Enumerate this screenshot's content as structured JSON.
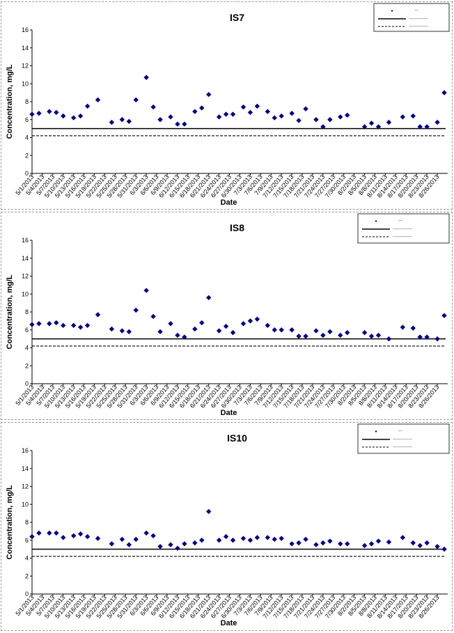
{
  "chart_data": [
    {
      "type": "scatter",
      "title": "IS7",
      "xlabel": "Date",
      "ylabel": "Concentration, mg/L",
      "ylim": [
        0,
        16
      ],
      "yticks": [
        0,
        2,
        4,
        6,
        8,
        10,
        12,
        14,
        16
      ],
      "xlim": [
        "5/1/2013",
        "8/29/2013"
      ],
      "xtick_labels": [
        "5/1/2013",
        "5/4/2013",
        "5/7/2013",
        "5/10/2013",
        "5/13/2013",
        "5/16/2013",
        "5/19/2013",
        "5/22/2013",
        "5/25/2013",
        "5/28/2013",
        "5/31/2013",
        "6/3/2013",
        "6/6/2013",
        "6/9/2013",
        "6/12/2013",
        "6/15/2013",
        "6/18/2013",
        "6/21/2013",
        "6/24/2013",
        "6/27/2013",
        "6/30/2013",
        "7/3/2013",
        "7/6/2013",
        "7/9/2013",
        "7/12/2013",
        "7/15/2013",
        "7/18/2013",
        "7/21/2013",
        "7/24/2013",
        "7/27/2013",
        "7/30/2013",
        "8/2/2013",
        "8/5/2013",
        "8/8/2013",
        "8/11/2013",
        "8/14/2013",
        "8/17/2013",
        "8/20/2013",
        "8/23/2013",
        "8/26/2013"
      ],
      "grid": false,
      "legend_position": "top-right",
      "marker_color": "#00008B",
      "reference_lines": [
        {
          "style": "solid",
          "value": 5.0
        },
        {
          "style": "dashed",
          "value": 4.2
        }
      ],
      "points": [
        {
          "x": "5/1/2013",
          "y": 6.6
        },
        {
          "x": "5/3/2013",
          "y": 6.7
        },
        {
          "x": "5/6/2013",
          "y": 6.9
        },
        {
          "x": "5/8/2013",
          "y": 6.8
        },
        {
          "x": "5/10/2013",
          "y": 6.4
        },
        {
          "x": "5/13/2013",
          "y": 6.2
        },
        {
          "x": "5/15/2013",
          "y": 6.4
        },
        {
          "x": "5/17/2013",
          "y": 7.5
        },
        {
          "x": "5/20/2013",
          "y": 8.2
        },
        {
          "x": "5/24/2013",
          "y": 5.7
        },
        {
          "x": "5/27/2013",
          "y": 6.0
        },
        {
          "x": "5/29/2013",
          "y": 5.8
        },
        {
          "x": "5/31/2013",
          "y": 8.2
        },
        {
          "x": "6/3/2013",
          "y": 10.7
        },
        {
          "x": "6/5/2013",
          "y": 7.4
        },
        {
          "x": "6/7/2013",
          "y": 6.0
        },
        {
          "x": "6/10/2013",
          "y": 6.3
        },
        {
          "x": "6/12/2013",
          "y": 5.5
        },
        {
          "x": "6/14/2013",
          "y": 5.5
        },
        {
          "x": "6/17/2013",
          "y": 6.9
        },
        {
          "x": "6/19/2013",
          "y": 7.3
        },
        {
          "x": "6/21/2013",
          "y": 8.8
        },
        {
          "x": "6/24/2013",
          "y": 6.3
        },
        {
          "x": "6/26/2013",
          "y": 6.6
        },
        {
          "x": "6/28/2013",
          "y": 6.6
        },
        {
          "x": "7/1/2013",
          "y": 7.4
        },
        {
          "x": "7/3/2013",
          "y": 6.8
        },
        {
          "x": "7/5/2013",
          "y": 7.5
        },
        {
          "x": "7/8/2013",
          "y": 6.9
        },
        {
          "x": "7/10/2013",
          "y": 6.2
        },
        {
          "x": "7/12/2013",
          "y": 6.4
        },
        {
          "x": "7/15/2013",
          "y": 6.7
        },
        {
          "x": "7/17/2013",
          "y": 5.9
        },
        {
          "x": "7/19/2013",
          "y": 7.2
        },
        {
          "x": "7/22/2013",
          "y": 6.0
        },
        {
          "x": "7/24/2013",
          "y": 5.2
        },
        {
          "x": "7/26/2013",
          "y": 6.0
        },
        {
          "x": "7/29/2013",
          "y": 6.3
        },
        {
          "x": "7/31/2013",
          "y": 6.5
        },
        {
          "x": "8/5/2013",
          "y": 5.2
        },
        {
          "x": "8/7/2013",
          "y": 5.6
        },
        {
          "x": "8/9/2013",
          "y": 5.2
        },
        {
          "x": "8/12/2013",
          "y": 5.7
        },
        {
          "x": "8/16/2013",
          "y": 6.3
        },
        {
          "x": "8/19/2013",
          "y": 6.4
        },
        {
          "x": "8/21/2013",
          "y": 5.2
        },
        {
          "x": "8/23/2013",
          "y": 5.2
        },
        {
          "x": "8/26/2013",
          "y": 5.7
        },
        {
          "x": "8/28/2013",
          "y": 9.0
        }
      ]
    },
    {
      "type": "scatter",
      "title": "IS8",
      "xlabel": "Date",
      "ylabel": "Concentration, mg/L",
      "ylim": [
        0,
        16
      ],
      "yticks": [
        0,
        2,
        4,
        6,
        8,
        10,
        12,
        14,
        16
      ],
      "xlim": [
        "5/1/2013",
        "8/29/2013"
      ],
      "xtick_labels": [
        "5/1/2013",
        "5/4/2013",
        "5/7/2013",
        "5/10/2013",
        "5/13/2013",
        "5/16/2013",
        "5/19/2013",
        "5/22/2013",
        "5/25/2013",
        "5/28/2013",
        "5/31/2013",
        "6/3/2013",
        "6/6/2013",
        "6/9/2013",
        "6/12/2013",
        "6/15/2013",
        "6/18/2013",
        "6/21/2013",
        "6/24/2013",
        "6/27/2013",
        "6/30/2013",
        "7/3/2013",
        "7/6/2013",
        "7/9/2013",
        "7/12/2013",
        "7/15/2013",
        "7/18/2013",
        "7/21/2013",
        "7/24/2013",
        "7/27/2013",
        "7/30/2013",
        "8/2/2013",
        "8/5/2013",
        "8/8/2013",
        "8/11/2013",
        "8/14/2013",
        "8/17/2013",
        "8/20/2013",
        "8/23/2013",
        "8/26/2013"
      ],
      "grid": false,
      "legend_position": "top-right",
      "marker_color": "#00008B",
      "reference_lines": [
        {
          "style": "solid",
          "value": 5.0
        },
        {
          "style": "dashed",
          "value": 4.2
        }
      ],
      "points": [
        {
          "x": "5/1/2013",
          "y": 6.6
        },
        {
          "x": "5/3/2013",
          "y": 6.7
        },
        {
          "x": "5/6/2013",
          "y": 6.7
        },
        {
          "x": "5/8/2013",
          "y": 6.8
        },
        {
          "x": "5/10/2013",
          "y": 6.5
        },
        {
          "x": "5/13/2013",
          "y": 6.5
        },
        {
          "x": "5/15/2013",
          "y": 6.3
        },
        {
          "x": "5/17/2013",
          "y": 6.5
        },
        {
          "x": "5/20/2013",
          "y": 7.7
        },
        {
          "x": "5/24/2013",
          "y": 6.1
        },
        {
          "x": "5/27/2013",
          "y": 5.9
        },
        {
          "x": "5/29/2013",
          "y": 5.8
        },
        {
          "x": "5/31/2013",
          "y": 8.2
        },
        {
          "x": "6/3/2013",
          "y": 10.4
        },
        {
          "x": "6/5/2013",
          "y": 7.5
        },
        {
          "x": "6/7/2013",
          "y": 5.8
        },
        {
          "x": "6/10/2013",
          "y": 6.7
        },
        {
          "x": "6/12/2013",
          "y": 5.4
        },
        {
          "x": "6/14/2013",
          "y": 5.2
        },
        {
          "x": "6/17/2013",
          "y": 6.1
        },
        {
          "x": "6/19/2013",
          "y": 6.8
        },
        {
          "x": "6/21/2013",
          "y": 9.6
        },
        {
          "x": "6/24/2013",
          "y": 5.9
        },
        {
          "x": "6/26/2013",
          "y": 6.4
        },
        {
          "x": "6/28/2013",
          "y": 5.7
        },
        {
          "x": "7/1/2013",
          "y": 6.7
        },
        {
          "x": "7/3/2013",
          "y": 7.0
        },
        {
          "x": "7/5/2013",
          "y": 7.2
        },
        {
          "x": "7/8/2013",
          "y": 6.5
        },
        {
          "x": "7/10/2013",
          "y": 6.0
        },
        {
          "x": "7/12/2013",
          "y": 6.0
        },
        {
          "x": "7/15/2013",
          "y": 6.0
        },
        {
          "x": "7/17/2013",
          "y": 5.3
        },
        {
          "x": "7/19/2013",
          "y": 5.3
        },
        {
          "x": "7/22/2013",
          "y": 5.9
        },
        {
          "x": "7/24/2013",
          "y": 5.4
        },
        {
          "x": "7/26/2013",
          "y": 5.8
        },
        {
          "x": "7/29/2013",
          "y": 5.4
        },
        {
          "x": "7/31/2013",
          "y": 5.7
        },
        {
          "x": "8/5/2013",
          "y": 5.7
        },
        {
          "x": "8/7/2013",
          "y": 5.3
        },
        {
          "x": "8/9/2013",
          "y": 5.4
        },
        {
          "x": "8/12/2013",
          "y": 5.0
        },
        {
          "x": "8/16/2013",
          "y": 6.3
        },
        {
          "x": "8/19/2013",
          "y": 6.2
        },
        {
          "x": "8/21/2013",
          "y": 5.2
        },
        {
          "x": "8/23/2013",
          "y": 5.2
        },
        {
          "x": "8/26/2013",
          "y": 5.0
        },
        {
          "x": "8/28/2013",
          "y": 7.6
        }
      ]
    },
    {
      "type": "scatter",
      "title": "IS10",
      "xlabel": "Date",
      "ylabel": "Concentration, mg/L",
      "ylim": [
        0,
        16
      ],
      "yticks": [
        0,
        2,
        4,
        6,
        8,
        10,
        12,
        14,
        16
      ],
      "xlim": [
        "5/1/2013",
        "8/29/2013"
      ],
      "xtick_labels": [
        "5/1/2013",
        "5/4/2013",
        "5/7/2013",
        "5/10/2013",
        "5/13/2013",
        "5/16/2013",
        "5/19/2013",
        "5/22/2013",
        "5/25/2013",
        "5/28/2013",
        "5/31/2013",
        "6/3/2013",
        "6/6/2013",
        "6/9/2013",
        "6/12/2013",
        "6/15/2013",
        "6/18/2013",
        "6/21/2013",
        "6/24/2013",
        "6/27/2013",
        "6/30/2013",
        "7/3/2013",
        "7/6/2013",
        "7/9/2013",
        "7/12/2013",
        "7/15/2013",
        "7/18/2013",
        "7/21/2013",
        "7/24/2013",
        "7/27/2013",
        "7/30/2013",
        "8/2/2013",
        "8/5/2013",
        "8/8/2013",
        "8/11/2013",
        "8/14/2013",
        "8/17/2013",
        "8/20/2013",
        "8/23/2013",
        "8/26/2013"
      ],
      "grid": false,
      "legend_position": "top-right",
      "marker_color": "#00008B",
      "reference_lines": [
        {
          "style": "solid",
          "value": 5.0
        },
        {
          "style": "dashed",
          "value": 4.2
        }
      ],
      "points": [
        {
          "x": "5/1/2013",
          "y": 6.4
        },
        {
          "x": "5/3/2013",
          "y": 6.8
        },
        {
          "x": "5/6/2013",
          "y": 6.8
        },
        {
          "x": "5/8/2013",
          "y": 6.8
        },
        {
          "x": "5/10/2013",
          "y": 6.3
        },
        {
          "x": "5/13/2013",
          "y": 6.5
        },
        {
          "x": "5/15/2013",
          "y": 6.7
        },
        {
          "x": "5/17/2013",
          "y": 6.4
        },
        {
          "x": "5/20/2013",
          "y": 6.2
        },
        {
          "x": "5/24/2013",
          "y": 5.6
        },
        {
          "x": "5/27/2013",
          "y": 6.1
        },
        {
          "x": "5/29/2013",
          "y": 5.5
        },
        {
          "x": "5/31/2013",
          "y": 6.1
        },
        {
          "x": "6/3/2013",
          "y": 6.8
        },
        {
          "x": "6/5/2013",
          "y": 6.5
        },
        {
          "x": "6/7/2013",
          "y": 5.3
        },
        {
          "x": "6/10/2013",
          "y": 5.5
        },
        {
          "x": "6/12/2013",
          "y": 5.1
        },
        {
          "x": "6/14/2013",
          "y": 5.6
        },
        {
          "x": "6/17/2013",
          "y": 5.7
        },
        {
          "x": "6/19/2013",
          "y": 6.0
        },
        {
          "x": "6/21/2013",
          "y": 9.2
        },
        {
          "x": "6/24/2013",
          "y": 6.0
        },
        {
          "x": "6/26/2013",
          "y": 6.4
        },
        {
          "x": "6/28/2013",
          "y": 6.0
        },
        {
          "x": "7/1/2013",
          "y": 6.2
        },
        {
          "x": "7/3/2013",
          "y": 6.0
        },
        {
          "x": "7/5/2013",
          "y": 6.3
        },
        {
          "x": "7/8/2013",
          "y": 6.3
        },
        {
          "x": "7/10/2013",
          "y": 6.1
        },
        {
          "x": "7/12/2013",
          "y": 6.2
        },
        {
          "x": "7/15/2013",
          "y": 5.6
        },
        {
          "x": "7/17/2013",
          "y": 5.7
        },
        {
          "x": "7/19/2013",
          "y": 6.1
        },
        {
          "x": "7/22/2013",
          "y": 5.5
        },
        {
          "x": "7/24/2013",
          "y": 5.7
        },
        {
          "x": "7/26/2013",
          "y": 5.9
        },
        {
          "x": "7/29/2013",
          "y": 5.6
        },
        {
          "x": "7/31/2013",
          "y": 5.6
        },
        {
          "x": "8/5/2013",
          "y": 5.4
        },
        {
          "x": "8/7/2013",
          "y": 5.6
        },
        {
          "x": "8/9/2013",
          "y": 5.9
        },
        {
          "x": "8/12/2013",
          "y": 5.8
        },
        {
          "x": "8/16/2013",
          "y": 6.3
        },
        {
          "x": "8/19/2013",
          "y": 5.7
        },
        {
          "x": "8/21/2013",
          "y": 5.4
        },
        {
          "x": "8/23/2013",
          "y": 5.7
        },
        {
          "x": "8/26/2013",
          "y": 5.3
        },
        {
          "x": "8/28/2013",
          "y": 5.0
        }
      ]
    }
  ]
}
